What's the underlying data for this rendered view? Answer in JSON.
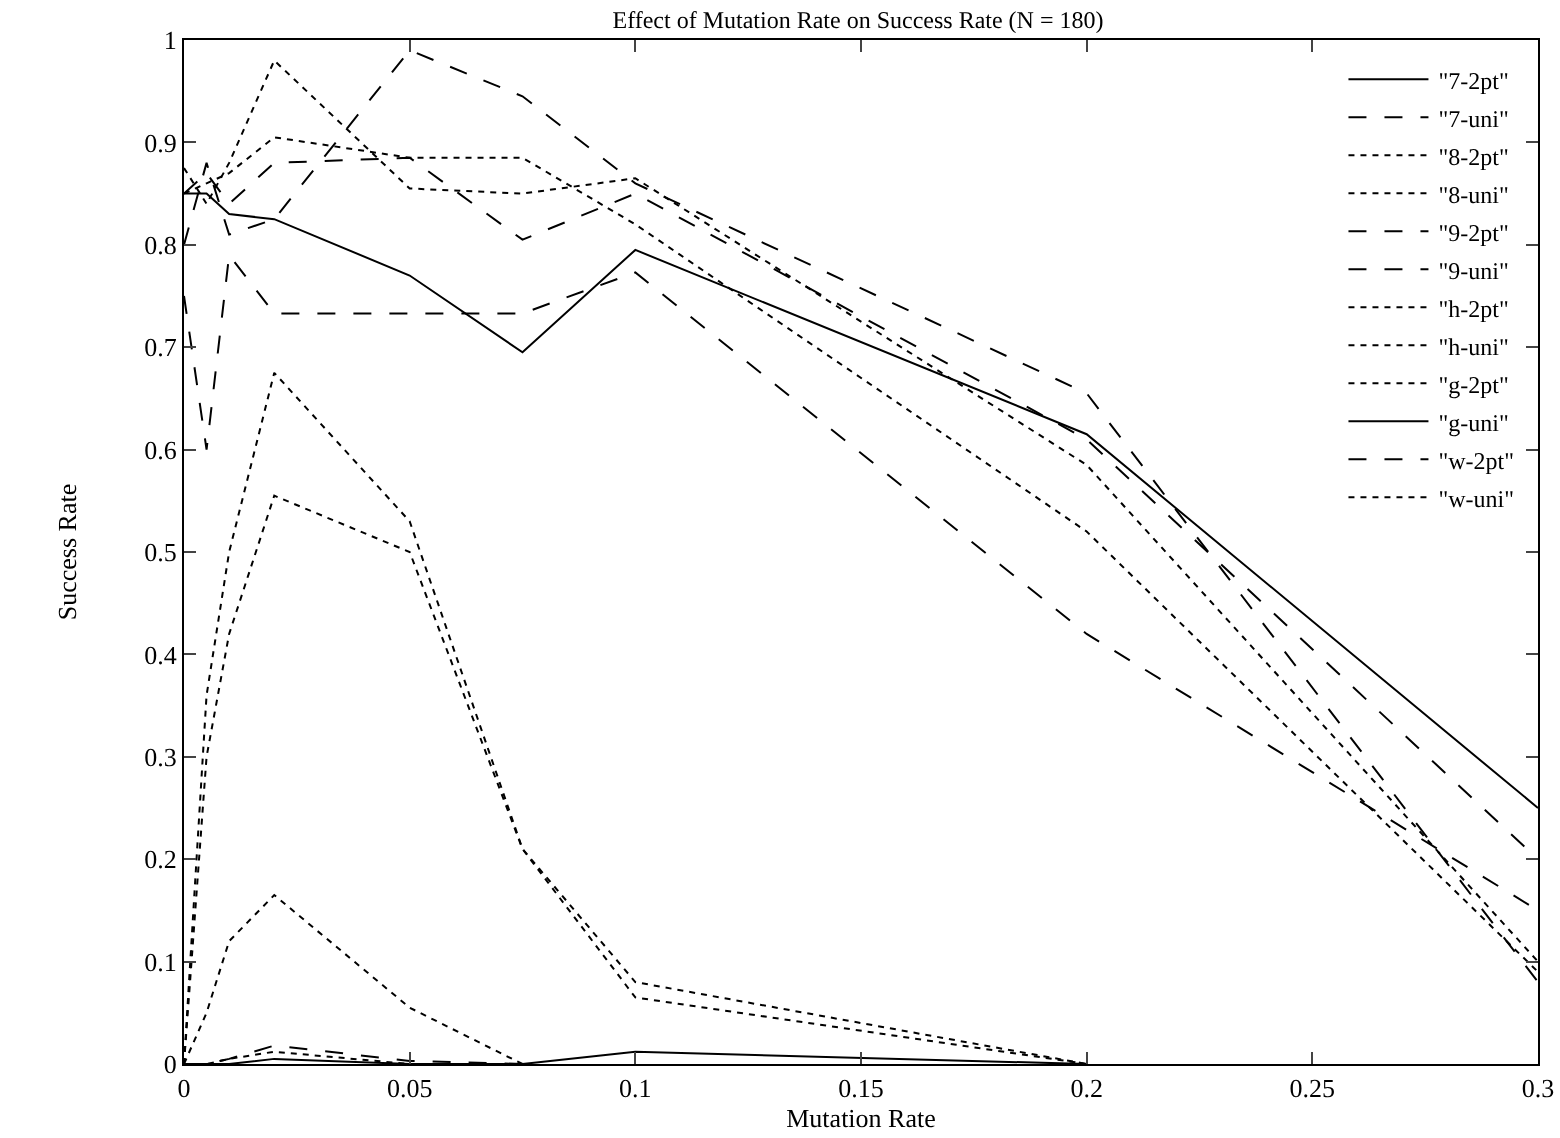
{
  "chart_data": {
    "type": "line",
    "title": "Effect of Mutation Rate on Success Rate (N = 180)",
    "xlabel": "Mutation Rate",
    "ylabel": "Success Rate",
    "x": [
      0,
      0.005,
      0.01,
      0.02,
      0.05,
      0.075,
      0.1,
      0.2,
      0.3
    ],
    "series": [
      {
        "name": "\"7-2pt\"",
        "color": "#000000",
        "line_style": "solid",
        "values": [
          0.85,
          0.85,
          0.83,
          0.825,
          0.77,
          0.695,
          0.795,
          0.615,
          0.25
        ]
      },
      {
        "name": "\"7-uni\"",
        "color": "#000000",
        "line_style": "dashed",
        "values": [
          0.75,
          0.6,
          0.79,
          0.733,
          0.733,
          0.733,
          0.773,
          0.42,
          0.15
        ]
      },
      {
        "name": "\"8-2pt\"",
        "color": "#000000",
        "line_style": "dotted",
        "values": [
          0.875,
          0.84,
          0.88,
          0.98,
          0.855,
          0.85,
          0.865,
          0.585,
          0.1
        ]
      },
      {
        "name": "\"8-uni\"",
        "color": "#000000",
        "line_style": "dotted",
        "values": [
          0.85,
          0.86,
          0.87,
          0.905,
          0.885,
          0.885,
          0.82,
          0.52,
          0.09
        ]
      },
      {
        "name": "\"9-2pt\"",
        "color": "#000000",
        "line_style": "dashed",
        "values": [
          0.8,
          0.88,
          0.81,
          0.825,
          0.99,
          0.945,
          0.86,
          0.655,
          0.08
        ]
      },
      {
        "name": "\"9-uni\"",
        "color": "#000000",
        "line_style": "dashed",
        "values": [
          0.85,
          0.87,
          0.84,
          0.88,
          0.885,
          0.805,
          0.85,
          0.61,
          0.2
        ]
      },
      {
        "name": "\"h-2pt\"",
        "color": "#000000",
        "line_style": "dotted",
        "values": [
          0,
          0.36,
          0.5,
          0.675,
          0.53,
          0.21,
          0.08,
          0,
          null
        ]
      },
      {
        "name": "\"h-uni\"",
        "color": "#000000",
        "line_style": "dotted",
        "values": [
          0,
          0.3,
          0.42,
          0.555,
          0.5,
          0.21,
          0.065,
          0,
          null
        ]
      },
      {
        "name": "\"g-2pt\"",
        "color": "#000000",
        "line_style": "dotted",
        "values": [
          0,
          0.05,
          0.12,
          0.165,
          0.055,
          0,
          null,
          null,
          null
        ]
      },
      {
        "name": "\"g-uni\"",
        "color": "#000000",
        "line_style": "solid",
        "values": [
          0,
          0,
          0,
          0.005,
          0,
          0,
          0.012,
          0,
          null
        ]
      },
      {
        "name": "\"w-2pt\"",
        "color": "#000000",
        "line_style": "dashed",
        "values": [
          0,
          0,
          0.005,
          0.018,
          0.003,
          0,
          null,
          null,
          null
        ]
      },
      {
        "name": "\"w-uni\"",
        "color": "#000000",
        "line_style": "dotted",
        "values": [
          0,
          0,
          0.005,
          0.012,
          0,
          0,
          null,
          null,
          null
        ]
      }
    ],
    "xlim": [
      0,
      0.3
    ],
    "xticks": [
      0,
      0.05,
      0.1,
      0.15,
      0.2,
      0.25,
      0.3
    ],
    "ylim": [
      0,
      1
    ],
    "yticks": [
      0,
      0.1,
      0.2,
      0.3,
      0.4,
      0.5,
      0.6,
      0.7,
      0.8,
      0.9,
      1
    ],
    "grid": false,
    "legend": "top right",
    "marker": "none"
  }
}
